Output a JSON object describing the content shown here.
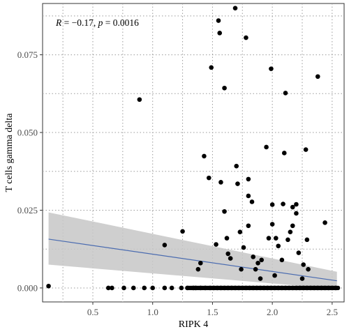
{
  "chart_data": {
    "type": "scatter",
    "xlabel": "RIPK 4",
    "ylabel": "T cells gamma delta",
    "annotation": {
      "r_label": "R",
      "r_text": " = −0.17, ",
      "p_label": "p",
      "p_text": " = 0.0016"
    },
    "xlim": [
      0.08,
      2.6
    ],
    "ylim": [
      -0.0045,
      0.0915
    ],
    "x_ticks": [
      0.5,
      1.0,
      1.5,
      2.0,
      2.5
    ],
    "x_tick_labels": [
      "0.5",
      "1.0",
      "1.5",
      "2.0",
      "2.5"
    ],
    "y_ticks": [
      0.0,
      0.025,
      0.05,
      0.075
    ],
    "y_tick_labels": [
      "0.000",
      "0.025",
      "0.050",
      "0.075"
    ],
    "grid": true,
    "colors": {
      "points": "#000000",
      "line": "#4a6bb0",
      "band": "#c7c7c7",
      "grid": "#9a9a9a"
    },
    "regression": {
      "x": [
        0.13,
        2.54
      ],
      "y": [
        0.0157,
        0.0023
      ],
      "ci_lower": [
        0.0075,
        -0.0003
      ],
      "ci_upper": [
        0.0243,
        0.0052
      ]
    },
    "points": [
      [
        0.13,
        0.0006
      ],
      [
        0.89,
        0.0606
      ],
      [
        1.1,
        0.0138
      ],
      [
        1.25,
        0.0182
      ],
      [
        1.38,
        0.006
      ],
      [
        1.43,
        0.0424
      ],
      [
        1.47,
        0.0354
      ],
      [
        1.49,
        0.0709
      ],
      [
        1.55,
        0.086
      ],
      [
        1.56,
        0.082
      ],
      [
        1.57,
        0.034
      ],
      [
        1.6,
        0.0643
      ],
      [
        1.6,
        0.0246
      ],
      [
        1.62,
        0.016
      ],
      [
        1.63,
        0.011
      ],
      [
        1.69,
        0.09
      ],
      [
        1.7,
        0.0392
      ],
      [
        1.71,
        0.0335
      ],
      [
        1.73,
        0.018
      ],
      [
        1.74,
        0.006
      ],
      [
        1.76,
        0.013
      ],
      [
        1.78,
        0.0805
      ],
      [
        1.8,
        0.035
      ],
      [
        1.8,
        0.0296
      ],
      [
        1.8,
        0.02
      ],
      [
        1.83,
        0.0277
      ],
      [
        1.84,
        0.01
      ],
      [
        1.86,
        0.006
      ],
      [
        1.88,
        0.008
      ],
      [
        1.91,
        0.009
      ],
      [
        1.95,
        0.0453
      ],
      [
        1.97,
        0.016
      ],
      [
        1.99,
        0.0705
      ],
      [
        2.0,
        0.0268
      ],
      [
        2.0,
        0.0205
      ],
      [
        2.03,
        0.016
      ],
      [
        2.05,
        0.0135
      ],
      [
        2.08,
        0.009
      ],
      [
        2.09,
        0.027
      ],
      [
        2.1,
        0.0434
      ],
      [
        2.11,
        0.0627
      ],
      [
        2.13,
        0.0155
      ],
      [
        2.15,
        0.018
      ],
      [
        2.17,
        0.026
      ],
      [
        2.17,
        0.02
      ],
      [
        2.2,
        0.0269
      ],
      [
        2.2,
        0.024
      ],
      [
        2.22,
        0.0113
      ],
      [
        2.26,
        0.0075
      ],
      [
        2.28,
        0.0445
      ],
      [
        2.29,
        0.0155
      ],
      [
        2.3,
        0.006
      ],
      [
        2.38,
        0.068
      ],
      [
        2.44,
        0.021
      ],
      [
        1.4,
        0.008
      ],
      [
        1.53,
        0.014
      ],
      [
        1.65,
        0.0095
      ],
      [
        1.9,
        0.003
      ],
      [
        2.02,
        0.004
      ],
      [
        2.25,
        0.003
      ],
      [
        0.63,
        0.0
      ],
      [
        0.66,
        0.0
      ],
      [
        0.76,
        0.0
      ],
      [
        0.84,
        0.0
      ],
      [
        0.93,
        0.0
      ],
      [
        1.0,
        0.0
      ],
      [
        1.1,
        0.0
      ],
      [
        1.16,
        0.0
      ],
      [
        1.24,
        0.0
      ],
      [
        1.29,
        0.0
      ],
      [
        1.34,
        0.0
      ],
      [
        1.36,
        0.0
      ],
      [
        1.4,
        0.0
      ],
      [
        1.44,
        0.0
      ],
      [
        1.48,
        0.0
      ],
      [
        1.51,
        0.0
      ],
      [
        1.54,
        0.0
      ],
      [
        1.57,
        0.0
      ],
      [
        1.6,
        0.0
      ],
      [
        1.63,
        0.0
      ],
      [
        1.66,
        0.0
      ],
      [
        1.69,
        0.0
      ],
      [
        1.72,
        0.0
      ],
      [
        1.75,
        0.0
      ],
      [
        1.78,
        0.0
      ],
      [
        1.81,
        0.0
      ],
      [
        1.84,
        0.0
      ],
      [
        1.87,
        0.0
      ],
      [
        1.9,
        0.0
      ],
      [
        1.93,
        0.0
      ],
      [
        1.96,
        0.0
      ],
      [
        1.99,
        0.0
      ],
      [
        2.02,
        0.0
      ],
      [
        2.05,
        0.0
      ],
      [
        2.08,
        0.0
      ],
      [
        2.11,
        0.0
      ],
      [
        2.14,
        0.0
      ],
      [
        2.17,
        0.0
      ],
      [
        2.2,
        0.0
      ],
      [
        2.23,
        0.0
      ],
      [
        2.26,
        0.0
      ],
      [
        2.29,
        0.0
      ],
      [
        2.32,
        0.0
      ],
      [
        2.35,
        0.0
      ],
      [
        2.38,
        0.0
      ],
      [
        2.41,
        0.0
      ],
      [
        2.44,
        0.0
      ],
      [
        2.47,
        0.0
      ],
      [
        2.5,
        0.0
      ],
      [
        2.53,
        0.0
      ]
    ]
  }
}
